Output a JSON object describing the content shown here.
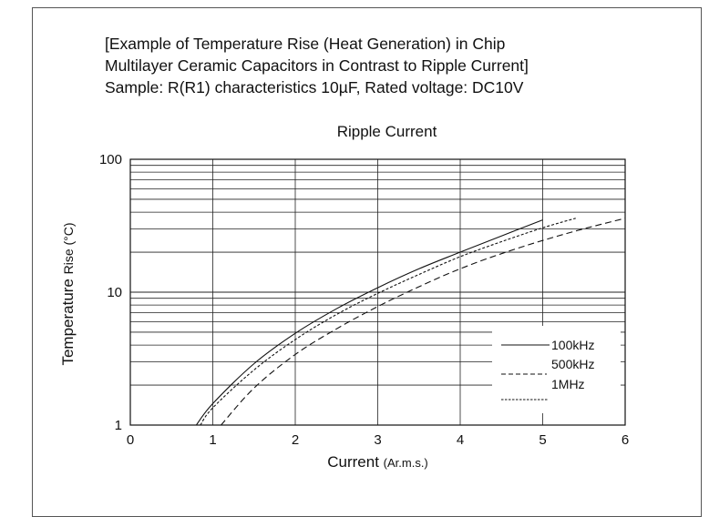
{
  "caption": {
    "line1": "[Example of Temperature Rise (Heat Generation) in Chip",
    "line2": "Multilayer Ceramic Capacitors in Contrast to Ripple Current]",
    "line3": "Sample: R(R1) characteristics 10µF, Rated voltage: DC10V"
  },
  "chart_data": {
    "type": "line",
    "title": "Ripple Current",
    "xlabel": "Current",
    "xlabel_unit": "(Ar.m.s.)",
    "ylabel": "Temperature",
    "ylabel_suffix": "Rise (°C)",
    "xlim": [
      0,
      6
    ],
    "ylim": [
      1,
      100
    ],
    "yscale": "log",
    "grid": true,
    "legend_position": "bottom-right",
    "x_ticks": [
      "0",
      "1",
      "2",
      "3",
      "4",
      "5",
      "6"
    ],
    "y_ticks": [
      "1",
      "10",
      "100"
    ],
    "series": [
      {
        "name": "100kHz",
        "style": "solid",
        "x": [
          0.8,
          1.0,
          1.5,
          2.0,
          2.5,
          3.0,
          3.5,
          4.0,
          4.5,
          5.0
        ],
        "y": [
          1.0,
          1.45,
          2.9,
          4.9,
          7.5,
          10.8,
          15.0,
          20.0,
          26.5,
          35.0
        ]
      },
      {
        "name": "500kHz",
        "style": "dashed",
        "x": [
          0.85,
          1.0,
          1.5,
          2.0,
          2.5,
          3.0,
          3.5,
          4.0,
          4.5,
          5.0,
          5.4
        ],
        "y": [
          1.0,
          1.35,
          2.6,
          4.4,
          6.8,
          9.8,
          13.6,
          18.5,
          24.0,
          30.5,
          36.0
        ]
      },
      {
        "name": "1MHz",
        "style": "dashed",
        "x": [
          1.1,
          1.5,
          2.0,
          2.5,
          3.0,
          3.5,
          4.0,
          4.5,
          5.0,
          5.5,
          6.0
        ],
        "y": [
          1.0,
          1.9,
          3.4,
          5.3,
          7.8,
          11.0,
          15.0,
          19.5,
          24.5,
          30.0,
          36.0
        ]
      }
    ]
  }
}
